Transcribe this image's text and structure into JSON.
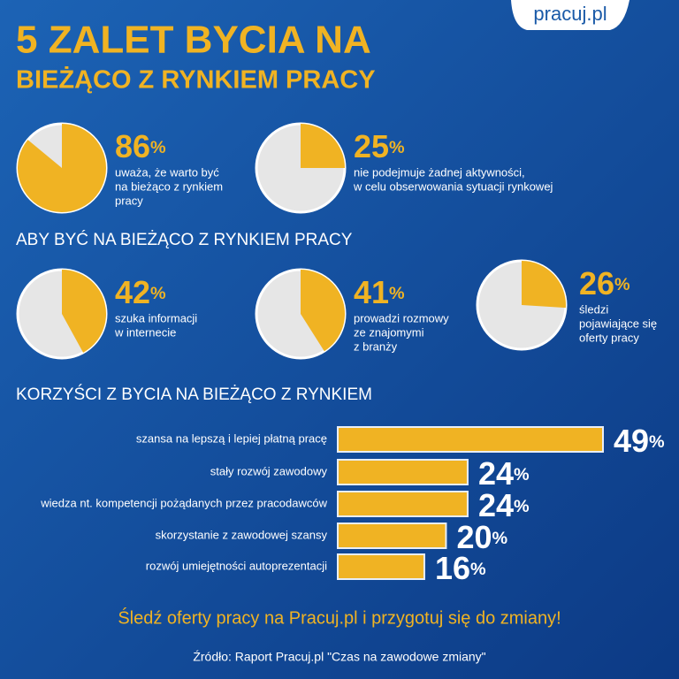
{
  "header": {
    "logo": "pracuj.pl",
    "title": [
      "5 ZALET BYCIA NA",
      "BIEŻĄCO Z RYNKIEM PRACY"
    ]
  },
  "sections": [
    "ABY BYĆ NA BIEŻĄCO Z RYNKIEM PRACY",
    "KORZYŚCI Z BYCIA NA BIEŻĄCO Z RYNKIEM"
  ],
  "chart_data": [
    {
      "type": "pie",
      "values": [
        86
      ],
      "value_labels": [
        "86%"
      ],
      "description": [
        "uważa, że warto być",
        "na bieżąco z rynkiem",
        "pracy"
      ],
      "color": "#f0b323"
    },
    {
      "type": "pie",
      "values": [
        25
      ],
      "value_labels": [
        "25%"
      ],
      "description": [
        "nie podejmuje żadnej aktywności,",
        "w celu obserwowania sytuacji rynkowej"
      ],
      "color": "#f0b323"
    },
    {
      "type": "pie",
      "values": [
        42
      ],
      "value_labels": [
        "42%"
      ],
      "description": [
        "szuka informacji",
        "w internecie"
      ],
      "color": "#f0b323"
    },
    {
      "type": "pie",
      "values": [
        41
      ],
      "value_labels": [
        "41%"
      ],
      "description": [
        "prowadzi rozmowy",
        "ze znajomymi",
        "z branży"
      ],
      "color": "#f0b323"
    },
    {
      "type": "pie",
      "values": [
        26
      ],
      "value_labels": [
        "26%"
      ],
      "description": [
        "śledzi",
        "pojawiające się",
        "oferty pracy"
      ],
      "color": "#f0b323"
    },
    {
      "type": "hbar",
      "categories": [
        "szansa na lepszą i lepiej płatną pracę",
        "stały rozwój zawodowy",
        "wiedza nt. kompetencji pożądanych przez pracodawców",
        "skorzystanie z zawodowej szansy",
        "rozwój umiejętności autoprezentacji"
      ],
      "values": [
        49,
        24,
        24,
        20,
        16
      ],
      "value_labels": [
        "49%",
        "24%",
        "24%",
        "20%",
        "16%"
      ],
      "color": "#f0b323"
    }
  ],
  "footer": {
    "cta": "Śledź oferty pracy na Pracuj.pl i przygotuj się do zmiany!",
    "source": "Źródło: Raport Pracuj.pl \"Czas na zawodowe zmiany\""
  }
}
